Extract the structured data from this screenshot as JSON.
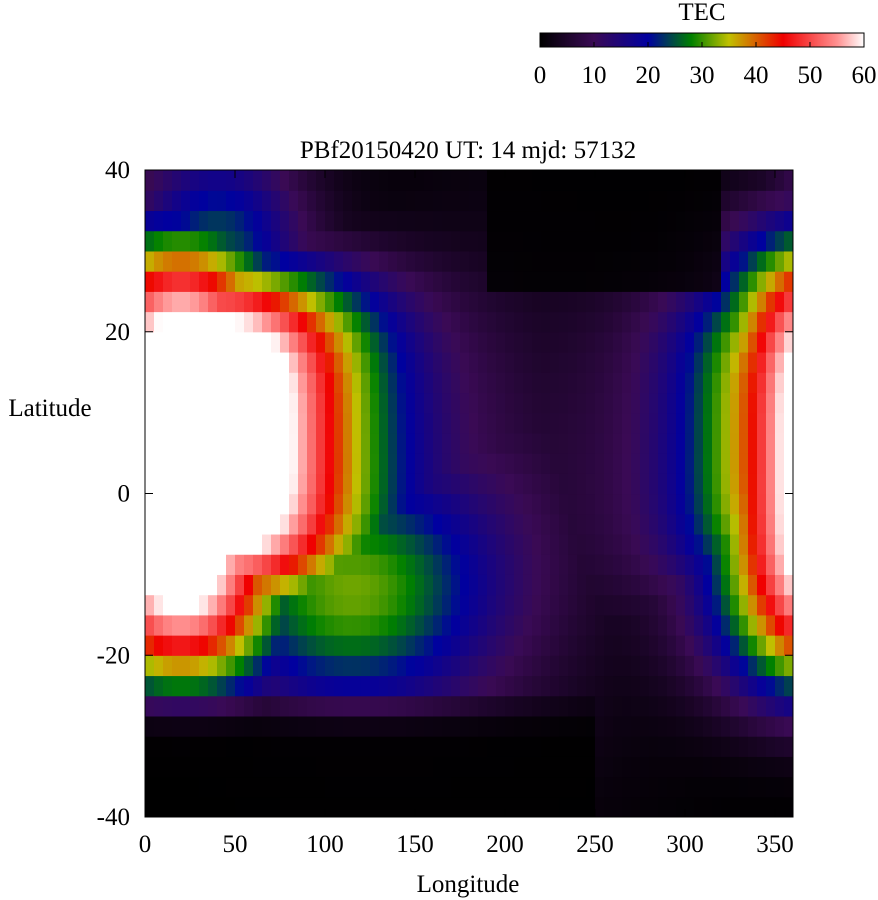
{
  "chart_data": {
    "type": "heatmap",
    "title": "PBf20150420  UT: 14  mjd: 57132",
    "xlabel": "Longitude",
    "ylabel": "Latitude",
    "xlim": [
      0,
      360
    ],
    "ylim": [
      -40,
      40
    ],
    "x_ticks": [
      "0",
      "50",
      "100",
      "150",
      "200",
      "250",
      "300",
      "350"
    ],
    "y_ticks": [
      "40",
      "20",
      "0",
      "-20",
      "-40"
    ],
    "grid": false,
    "colorbar": {
      "label": "TEC",
      "range": [
        0,
        60
      ],
      "ticks": [
        "0",
        "10",
        "20",
        "30",
        "40",
        "50",
        "60"
      ],
      "placement": "top-right",
      "stops": [
        {
          "value": 0,
          "color": "#000000"
        },
        {
          "value": 10,
          "color": "#3a0a55"
        },
        {
          "value": 20,
          "color": "#0000a0"
        },
        {
          "value": 28,
          "color": "#008000"
        },
        {
          "value": 35,
          "color": "#c0c000"
        },
        {
          "value": 45,
          "color": "#f00000"
        },
        {
          "value": 55,
          "color": "#ff9090"
        },
        {
          "value": 60,
          "color": "#ffffff"
        }
      ]
    },
    "grid_resolution": {
      "lon_step": 5,
      "lat_step": 2.5
    }
  }
}
